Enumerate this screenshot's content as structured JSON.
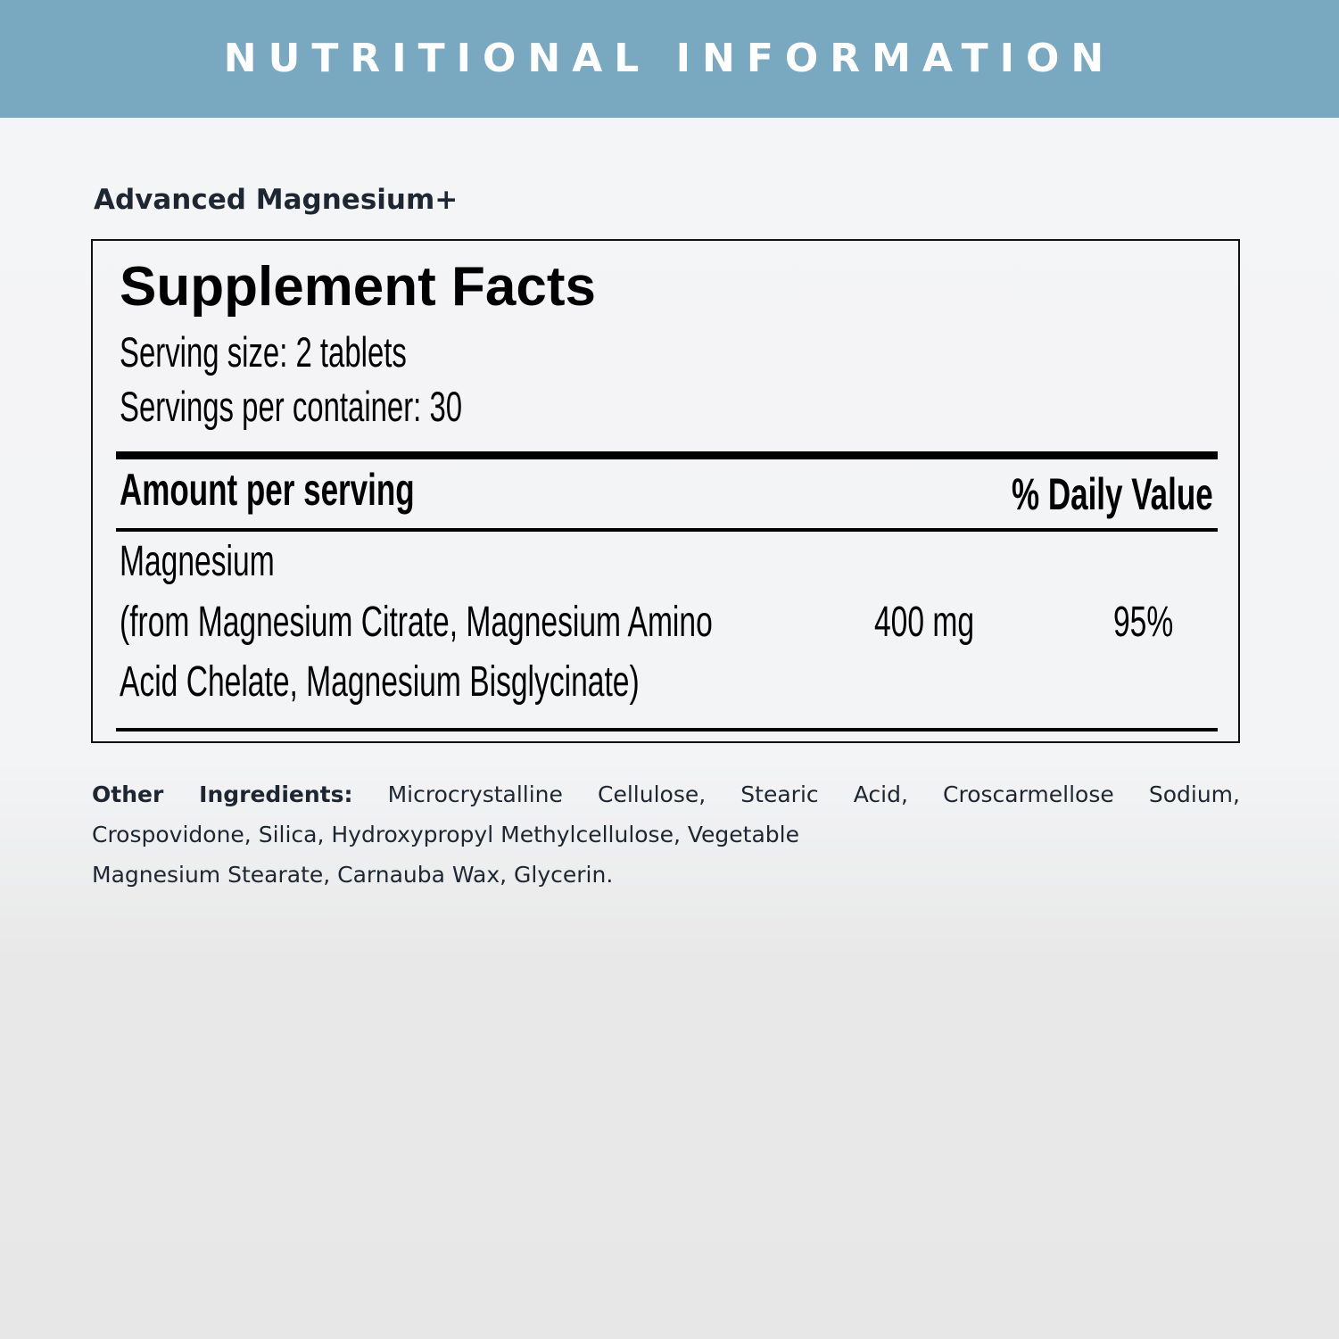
{
  "banner": {
    "title": "NUTRITIONAL INFORMATION",
    "color": "#79a9c1"
  },
  "product_name": "Advanced Magnesium+",
  "facts": {
    "title": "Supplement Facts",
    "serving_size": "Serving size: 2 tablets",
    "servings_per_container": "Servings per container: 30",
    "header_amount": "Amount per serving",
    "header_dv": "% Daily Value",
    "rows": [
      {
        "name": "Magnesium",
        "source_line1": "(from Magnesium Citrate, Magnesium Amino",
        "source_line2": "Acid Chelate, Magnesium Bisglycinate)",
        "amount": "400 mg",
        "dv": "95%"
      }
    ]
  },
  "other_ingredients": {
    "label": "Other Ingredients:",
    "line1": "Microcrystalline Cellulose, Stearic Acid, Croscarmellose Sodium,",
    "line2": "Crospovidone, Silica, Hydroxypropyl Methylcellulose, Vegetable",
    "line3": "Magnesium Stearate, Carnauba Wax, Glycerin."
  }
}
